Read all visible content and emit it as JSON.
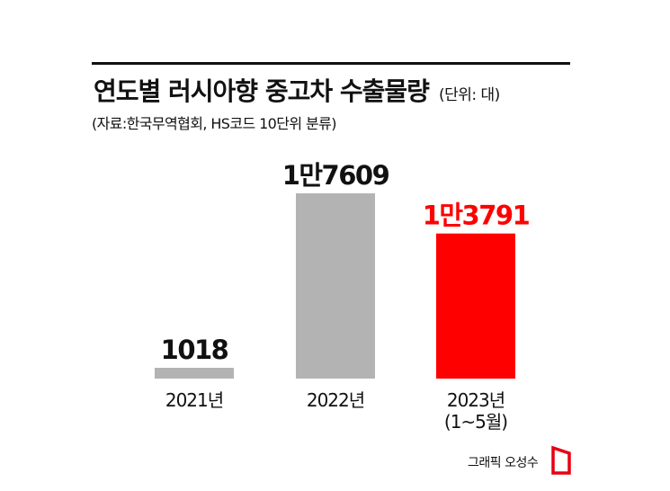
{
  "header": {
    "title": "연도별 러시아향 중고차 수출물량",
    "unit": "(단위: 대)",
    "source": "(자료:한국무역협회, HS코드 10단위 분류)"
  },
  "credit": "그래픽 오성수",
  "colors": {
    "bar_default": "#b3b3b3",
    "bar_highlight": "#ff0000",
    "text": "#111111"
  },
  "chart_data": {
    "type": "bar",
    "title": "연도별 러시아향 중고차 수출물량",
    "ylabel": "단위: 대",
    "xlabel": "",
    "grid": false,
    "legend": "none",
    "ylim": [
      0,
      17609
    ],
    "categories": [
      "2021년",
      "2022년",
      "2023년\n(1~5월)"
    ],
    "values": [
      1018,
      17609,
      13791
    ],
    "data_labels": [
      "1018",
      "1만7609",
      "1만3791"
    ],
    "highlight_index": 2
  }
}
